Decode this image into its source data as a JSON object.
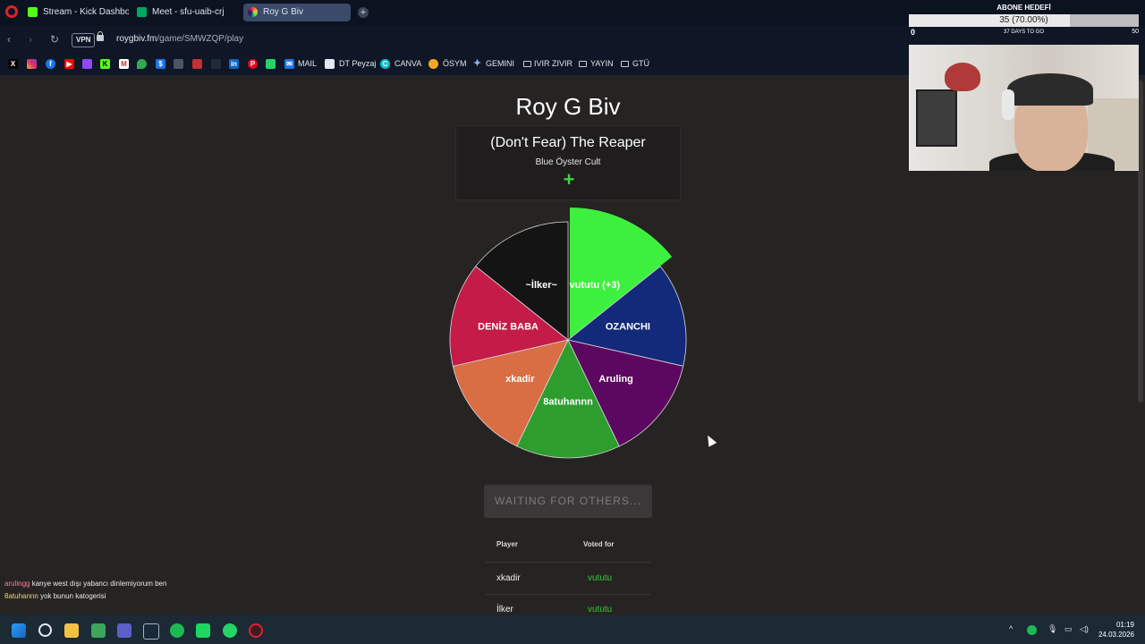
{
  "browser": {
    "tabs": [
      {
        "label": "Stream - Kick Dashboard",
        "color": "#53fc18"
      },
      {
        "label": "Meet - sfu-uaib-crj",
        "color": "#00a862"
      },
      {
        "label": "Roy G Biv",
        "color": "#e8463a",
        "active": true
      }
    ],
    "vpn_label": "VPN",
    "url_host": "roygbiv.fm",
    "url_path": "/game/SMWZQP/play",
    "bookmarks": [
      "MAIL",
      "DT Peyzaj",
      "CANVA",
      "ÖSYM",
      "GEMINI",
      "IVIR ZIVIR",
      "YAYIN",
      "GTÜ"
    ]
  },
  "game": {
    "title": "Roy G Biv",
    "song_title": "(Don't Fear) The Reaper",
    "song_artist": "Blue Öyster Cult",
    "add_symbol": "+",
    "wheel": [
      {
        "label": "vututu (+3)",
        "color": "#3ef03e",
        "highlight": true
      },
      {
        "label": "OZANCHI",
        "color": "#13297a"
      },
      {
        "label": "Aruling",
        "color": "#5d0860"
      },
      {
        "label": "8atuhannn",
        "color": "#2d9e2d"
      },
      {
        "label": "xkadir",
        "color": "#d96e45"
      },
      {
        "label": "DENİZ BABA",
        "color": "#c41b48"
      },
      {
        "label": "~İlker~",
        "color": "#141414"
      }
    ],
    "waiting_label": "WAITING FOR OTHERS...",
    "table": {
      "col_player": "Player",
      "col_voted": "Voted for",
      "rows": [
        {
          "player": "xkadir",
          "voted": "vututu"
        },
        {
          "player": "İlker",
          "voted": "vututu"
        }
      ]
    }
  },
  "chat": [
    {
      "user": "arulingg",
      "message": "kanye west dışı yabancı dinlemiyorum ben"
    },
    {
      "user": "8atuhannn",
      "message": "yok bunun katogerisi"
    }
  ],
  "overlay": {
    "goal_title": "ABONE HEDEFİ",
    "goal_text": "35 (70.00%)",
    "goal_progress": 0.7,
    "goal_start": "0",
    "goal_end": "50",
    "goal_days": "37 DAYS TO GO"
  },
  "taskbar": {
    "time": "01:19",
    "date": "24.03.2026"
  }
}
